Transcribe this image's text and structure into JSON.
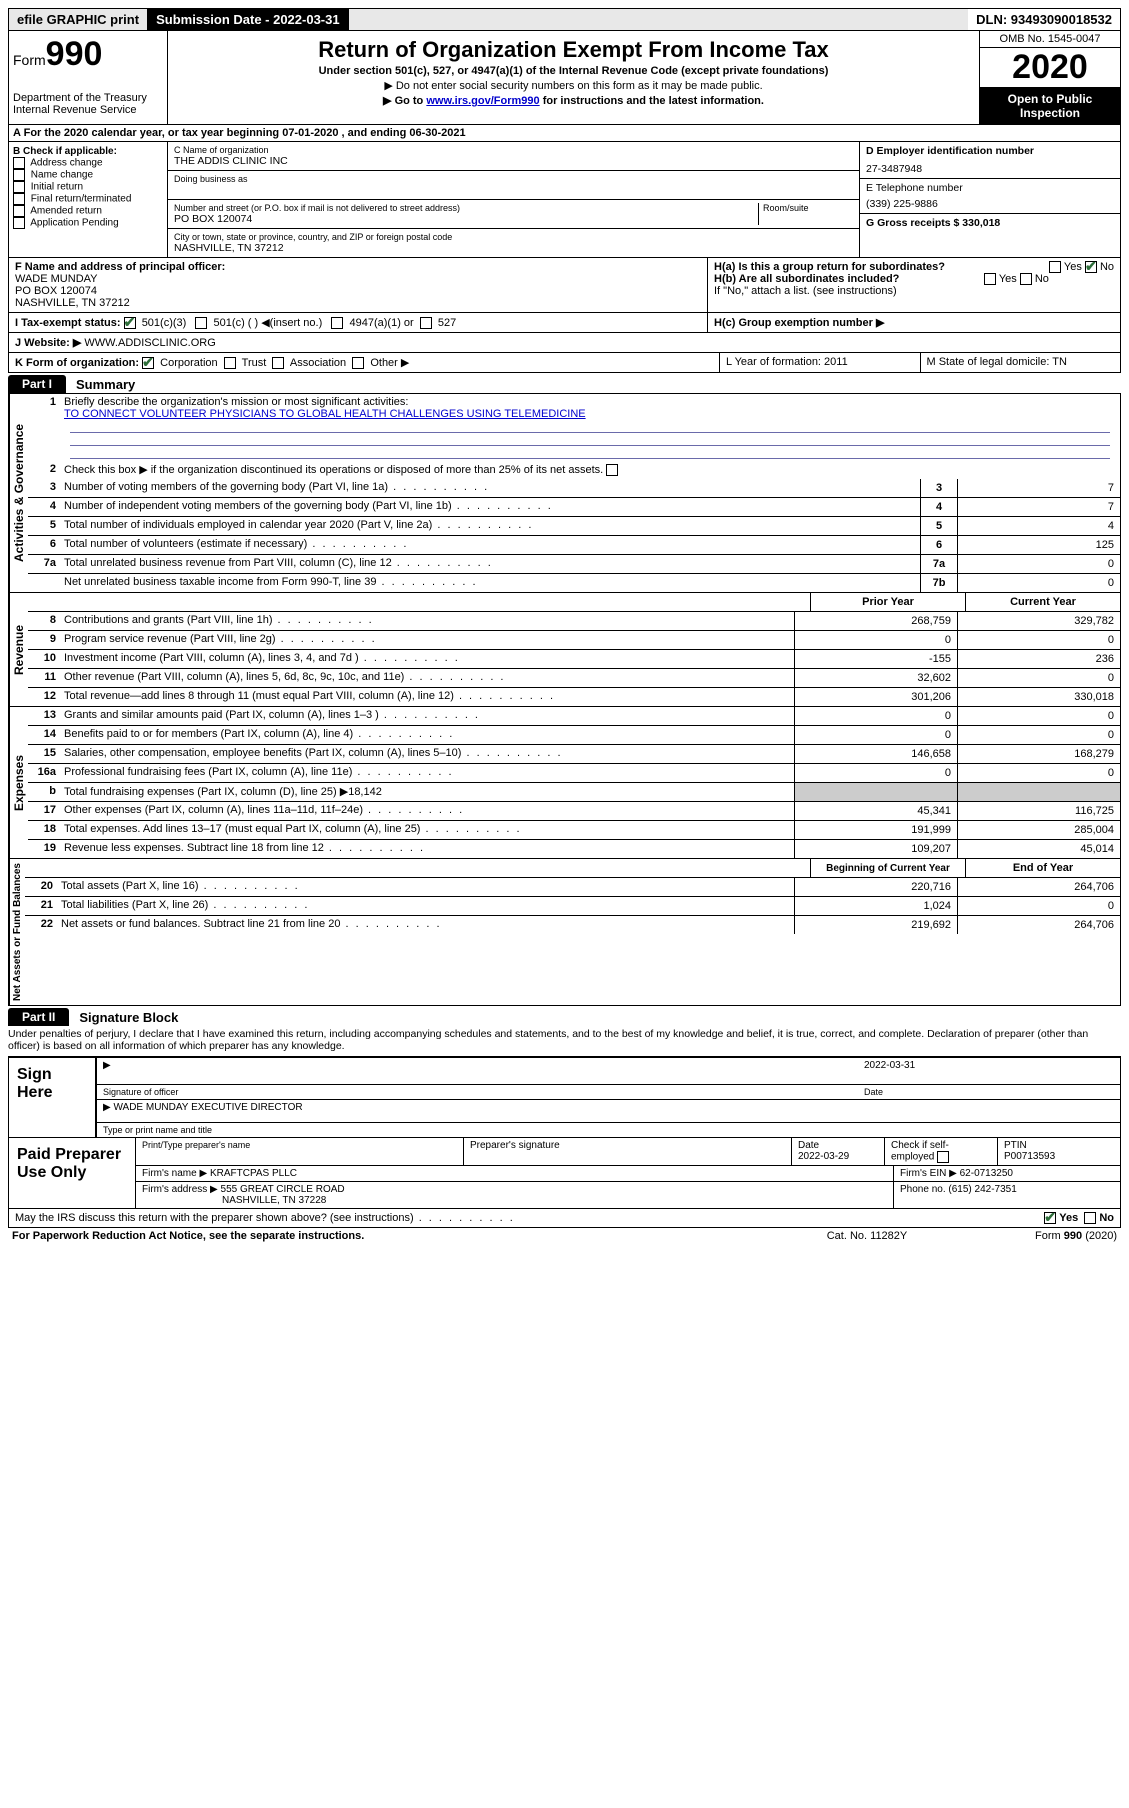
{
  "topbar": {
    "efile": "efile GRAPHIC print",
    "sub_label": "Submission Date - 2022-03-31",
    "dln": "DLN: 93493090018532"
  },
  "header": {
    "form_word": "Form",
    "form_num": "990",
    "dept": "Department of the Treasury",
    "irs": "Internal Revenue Service",
    "title": "Return of Organization Exempt From Income Tax",
    "subtitle": "Under section 501(c), 527, or 4947(a)(1) of the Internal Revenue Code (except private foundations)",
    "line1": "Do not enter social security numbers on this form as it may be made public.",
    "line2_pre": "Go to ",
    "line2_link": "www.irs.gov/Form990",
    "line2_post": " for instructions and the latest information.",
    "omb": "OMB No. 1545-0047",
    "year": "2020",
    "open": "Open to Public Inspection"
  },
  "section_a": "For the 2020 calendar year, or tax year beginning 07-01-2020    , and ending 06-30-2021",
  "box_b": {
    "title": "B Check if applicable:",
    "items": [
      "Address change",
      "Name change",
      "Initial return",
      "Final return/terminated",
      "Amended return",
      "Application Pending"
    ]
  },
  "box_c": {
    "label_name": "C Name of organization",
    "name": "THE ADDIS CLINIC INC",
    "dba_label": "Doing business as",
    "addr_label": "Number and street (or P.O. box if mail is not delivered to street address)",
    "room_label": "Room/suite",
    "addr": "PO BOX 120074",
    "city_label": "City or town, state or province, country, and ZIP or foreign postal code",
    "city": "NASHVILLE, TN  37212"
  },
  "box_d": {
    "label": "D Employer identification number",
    "value": "27-3487948"
  },
  "box_e": {
    "label": "E Telephone number",
    "value": "(339) 225-9886"
  },
  "box_g": {
    "label": "G Gross receipts $ 330,018"
  },
  "box_f": {
    "label": "F  Name and address of principal officer:",
    "name": "WADE MUNDAY",
    "addr1": "PO BOX 120074",
    "addr2": "NASHVILLE, TN  37212"
  },
  "box_h": {
    "ha": "H(a)  Is this a group return for subordinates?",
    "hb": "H(b)  Are all subordinates included?",
    "hb_note": "If \"No,\" attach a list. (see instructions)",
    "hc": "H(c)  Group exemption number ▶",
    "yes": "Yes",
    "no": "No"
  },
  "box_i": {
    "label": "I   Tax-exempt status:",
    "opts": [
      "501(c)(3)",
      "501(c) (  ) ◀(insert no.)",
      "4947(a)(1) or",
      "527"
    ]
  },
  "box_j": {
    "label": "J   Website: ▶",
    "value": "WWW.ADDISCLINIC.ORG"
  },
  "box_k": {
    "label": "K Form of organization:",
    "opts": [
      "Corporation",
      "Trust",
      "Association",
      "Other ▶"
    ]
  },
  "box_l": {
    "label": "L Year of formation: 2011"
  },
  "box_m": {
    "label": "M State of legal domicile: TN"
  },
  "part1": {
    "tab": "Part I",
    "title": "Summary",
    "q1": "Briefly describe the organization's mission or most significant activities:",
    "mission": "TO CONNECT VOLUNTEER PHYSICIANS TO GLOBAL HEALTH CHALLENGES USING TELEMEDICINE",
    "q2": "Check this box ▶  if the organization discontinued its operations or disposed of more than 25% of its net assets.",
    "rows_gov": [
      {
        "n": "3",
        "desc": "Number of voting members of the governing body (Part VI, line 1a)",
        "box": "3",
        "val": "7"
      },
      {
        "n": "4",
        "desc": "Number of independent voting members of the governing body (Part VI, line 1b)",
        "box": "4",
        "val": "7"
      },
      {
        "n": "5",
        "desc": "Total number of individuals employed in calendar year 2020 (Part V, line 2a)",
        "box": "5",
        "val": "4"
      },
      {
        "n": "6",
        "desc": "Total number of volunteers (estimate if necessary)",
        "box": "6",
        "val": "125"
      },
      {
        "n": "7a",
        "desc": "Total unrelated business revenue from Part VIII, column (C), line 12",
        "box": "7a",
        "val": "0"
      },
      {
        "n": "",
        "desc": "Net unrelated business taxable income from Form 990-T, line 39",
        "box": "7b",
        "val": "0"
      }
    ],
    "head_prior": "Prior Year",
    "head_current": "Current Year",
    "rows_rev": [
      {
        "n": "8",
        "desc": "Contributions and grants (Part VIII, line 1h)",
        "p": "268,759",
        "c": "329,782"
      },
      {
        "n": "9",
        "desc": "Program service revenue (Part VIII, line 2g)",
        "p": "0",
        "c": "0"
      },
      {
        "n": "10",
        "desc": "Investment income (Part VIII, column (A), lines 3, 4, and 7d )",
        "p": "-155",
        "c": "236"
      },
      {
        "n": "11",
        "desc": "Other revenue (Part VIII, column (A), lines 5, 6d, 8c, 9c, 10c, and 11e)",
        "p": "32,602",
        "c": "0"
      },
      {
        "n": "12",
        "desc": "Total revenue—add lines 8 through 11 (must equal Part VIII, column (A), line 12)",
        "p": "301,206",
        "c": "330,018"
      }
    ],
    "rows_exp": [
      {
        "n": "13",
        "desc": "Grants and similar amounts paid (Part IX, column (A), lines 1–3 )",
        "p": "0",
        "c": "0"
      },
      {
        "n": "14",
        "desc": "Benefits paid to or for members (Part IX, column (A), line 4)",
        "p": "0",
        "c": "0"
      },
      {
        "n": "15",
        "desc": "Salaries, other compensation, employee benefits (Part IX, column (A), lines 5–10)",
        "p": "146,658",
        "c": "168,279"
      },
      {
        "n": "16a",
        "desc": "Professional fundraising fees (Part IX, column (A), line 11e)",
        "p": "0",
        "c": "0"
      },
      {
        "n": "b",
        "desc": "Total fundraising expenses (Part IX, column (D), line 25) ▶18,142",
        "p": "",
        "c": "",
        "shade": true
      },
      {
        "n": "17",
        "desc": "Other expenses (Part IX, column (A), lines 11a–11d, 11f–24e)",
        "p": "45,341",
        "c": "116,725"
      },
      {
        "n": "18",
        "desc": "Total expenses. Add lines 13–17 (must equal Part IX, column (A), line 25)",
        "p": "191,999",
        "c": "285,004"
      },
      {
        "n": "19",
        "desc": "Revenue less expenses. Subtract line 18 from line 12",
        "p": "109,207",
        "c": "45,014"
      }
    ],
    "head_begin": "Beginning of Current Year",
    "head_end": "End of Year",
    "rows_net": [
      {
        "n": "20",
        "desc": "Total assets (Part X, line 16)",
        "p": "220,716",
        "c": "264,706"
      },
      {
        "n": "21",
        "desc": "Total liabilities (Part X, line 26)",
        "p": "1,024",
        "c": "0"
      },
      {
        "n": "22",
        "desc": "Net assets or fund balances. Subtract line 21 from line 20",
        "p": "219,692",
        "c": "264,706"
      }
    ],
    "vlabels": {
      "gov": "Activities & Governance",
      "rev": "Revenue",
      "exp": "Expenses",
      "net": "Net Assets or Fund Balances"
    }
  },
  "part2": {
    "tab": "Part II",
    "title": "Signature Block",
    "declaration": "Under penalties of perjury, I declare that I have examined this return, including accompanying schedules and statements, and to the best of my knowledge and belief, it is true, correct, and complete. Declaration of preparer (other than officer) is based on all information of which preparer has any knowledge."
  },
  "sign": {
    "label": "Sign Here",
    "sig_officer_label": "Signature of officer",
    "date_label": "Date",
    "date_val": "2022-03-31",
    "name_title": "WADE MUNDAY EXECUTIVE DIRECTOR",
    "name_label": "Type or print name and title"
  },
  "prep": {
    "label": "Paid Preparer Use Only",
    "h1": "Print/Type preparer's name",
    "h2": "Preparer's signature",
    "h3": "Date",
    "h3v": "2022-03-29",
    "h4": "Check  if self-employed",
    "h5": "PTIN",
    "h5v": "P00713593",
    "firm_name_l": "Firm's name    ▶",
    "firm_name": "KRAFTCPAS PLLC",
    "firm_ein_l": "Firm's EIN ▶",
    "firm_ein": "62-0713250",
    "firm_addr_l": "Firm's address ▶",
    "firm_addr1": "555 GREAT CIRCLE ROAD",
    "firm_addr2": "NASHVILLE, TN  37228",
    "phone_l": "Phone no.",
    "phone": "(615) 242-7351"
  },
  "discuss": {
    "q": "May the IRS discuss this return with the preparer shown above? (see instructions)",
    "yes": "Yes",
    "no": "No"
  },
  "footer": {
    "left": "For Paperwork Reduction Act Notice, see the separate instructions.",
    "mid": "Cat. No. 11282Y",
    "right": "Form 990 (2020)"
  }
}
